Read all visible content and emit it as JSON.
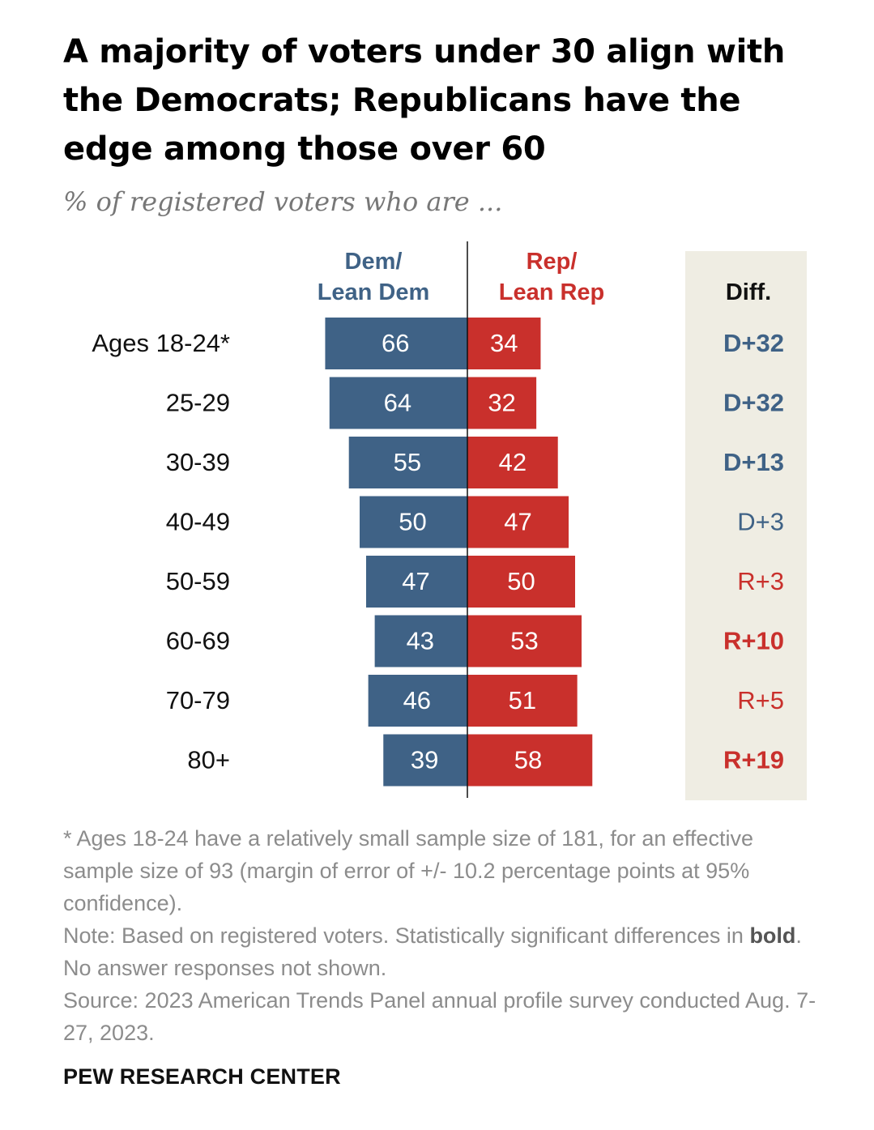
{
  "title": "A majority of voters under 30 align with the Democrats; Republicans have the edge among those over 60",
  "subtitle": "% of registered voters who are ...",
  "chart_data": {
    "type": "bar",
    "orientation": "diverging-horizontal",
    "categories": [
      "Ages 18-24*",
      "25-29",
      "30-39",
      "40-49",
      "50-59",
      "60-69",
      "70-79",
      "80+"
    ],
    "series": [
      {
        "name": "Dem/ Lean Dem",
        "name_lines": [
          "Dem/",
          "Lean Dem"
        ],
        "color": "#3f6286",
        "values": [
          66,
          64,
          55,
          50,
          47,
          43,
          46,
          39
        ]
      },
      {
        "name": "Rep/ Lean Rep",
        "name_lines": [
          "Rep/",
          "Lean Rep"
        ],
        "color": "#c9302c",
        "values": [
          34,
          32,
          42,
          47,
          50,
          53,
          51,
          58
        ]
      }
    ],
    "diff": {
      "header": "Diff.",
      "values": [
        "D+32",
        "D+32",
        "D+13",
        "D+3",
        "R+3",
        "R+10",
        "R+5",
        "R+19"
      ],
      "bold": [
        true,
        true,
        true,
        false,
        false,
        true,
        false,
        true
      ],
      "panel_color": "#efede3"
    },
    "legend": "column headers above bars"
  },
  "notes": {
    "footnote": "* Ages 18-24 have a relatively small sample size of 181, for an effective sample size of 93 (margin of error of +/- 10.2 percentage points at 95% confidence).",
    "note_before_bold": "Note: Based on registered voters. Statistically significant differences in ",
    "note_bold": "bold",
    "note_after_bold": ". No answer responses not shown.",
    "source": "Source: 2023 American Trends Panel annual profile survey conducted Aug. 7-27, 2023."
  },
  "org": "PEW RESEARCH CENTER"
}
